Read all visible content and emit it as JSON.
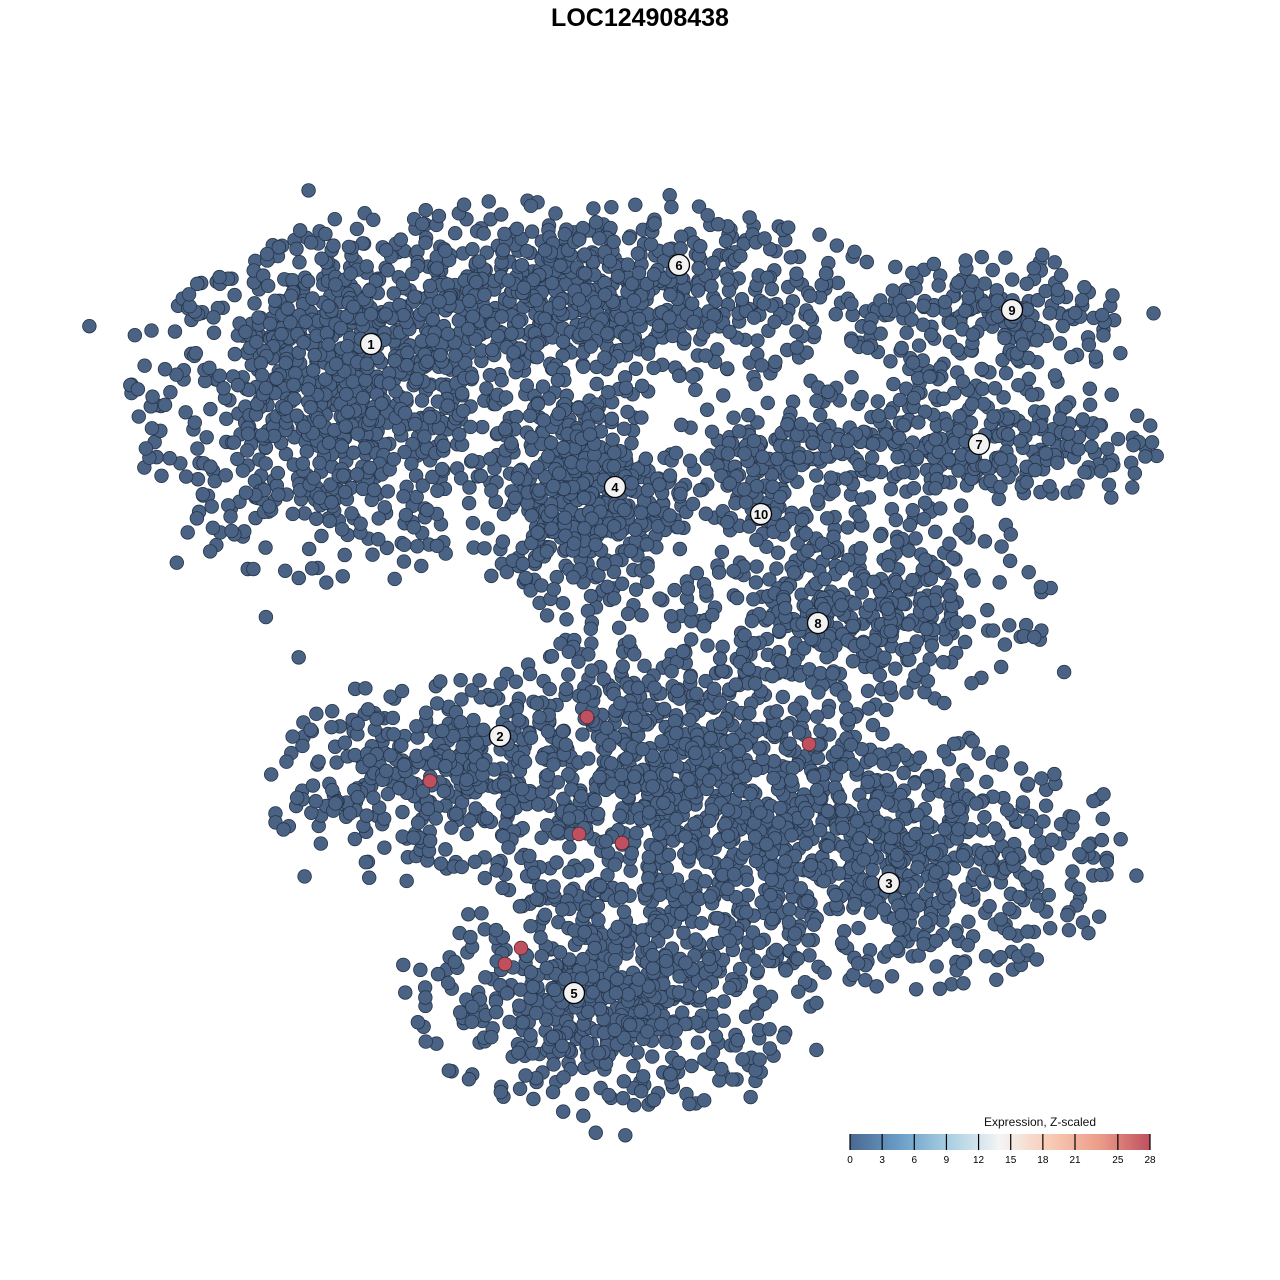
{
  "chart_data": {
    "type": "scatter",
    "title": "LOC124908438",
    "xlabel": "",
    "ylabel": "",
    "axes_visible": false,
    "grid": false,
    "xlim": [
      -45,
      50
    ],
    "ylim": [
      -47,
      47
    ],
    "point_color_default": "#4a6283",
    "point_edge_color": "#26354a",
    "clusters": [
      {
        "label": "1",
        "label_pos": [
          -26.9,
          29.6
        ],
        "components": [
          {
            "center": [
              -30,
              24
            ],
            "spread": [
              9,
              8
            ],
            "n": 900
          }
        ]
      },
      {
        "label": "6",
        "label_pos": [
          3.9,
          37.5
        ],
        "components": [
          {
            "center": [
              -6,
              34
            ],
            "spread": [
              13,
              4.5
            ],
            "n": 800
          }
        ]
      },
      {
        "label": "4",
        "label_pos": [
          -2.5,
          15.3
        ],
        "components": [
          {
            "center": [
              -5.5,
              14.5
            ],
            "spread": [
              4.5,
              5
            ],
            "n": 450
          }
        ]
      },
      {
        "label": "10",
        "label_pos": [
          12.1,
          12.6
        ],
        "components": [
          {
            "center": [
              11,
              16
            ],
            "spread": [
              4,
              4
            ],
            "n": 160
          }
        ]
      },
      {
        "label": "7",
        "label_pos": [
          33.9,
          19.6
        ],
        "components": [
          {
            "center": [
              32,
              20
            ],
            "spread": [
              9,
              3.5
            ],
            "n": 350
          }
        ]
      },
      {
        "label": "9",
        "label_pos": [
          37.2,
          33
        ],
        "components": [
          {
            "center": [
              36,
              32
            ],
            "spread": [
              6.5,
              3
            ],
            "n": 200
          }
        ]
      },
      {
        "label": "8",
        "label_pos": [
          17.8,
          1.7
        ],
        "components": [
          {
            "center": [
              22,
              3
            ],
            "spread": [
              8,
              4.5
            ],
            "n": 380
          }
        ]
      },
      {
        "label": "2",
        "label_pos": [
          -14,
          -9.6
        ],
        "components": [
          {
            "center": [
              -21,
              -14
            ],
            "spread": [
              7,
              4.5
            ],
            "n": 350
          }
        ]
      },
      {
        "label": "3",
        "label_pos": [
          24.9,
          -24.3
        ],
        "components": [
          {
            "center": [
              26,
              -22
            ],
            "spread": [
              10,
              5.5
            ],
            "n": 600
          }
        ]
      },
      {
        "label": "5",
        "label_pos": [
          -6.6,
          -35.3
        ],
        "components": [
          {
            "center": [
              -2,
              -36
            ],
            "spread": [
              9,
              5
            ],
            "n": 600
          },
          {
            "center": [
              4,
              -14
            ],
            "spread": [
              10,
              8
            ],
            "n": 950
          }
        ]
      }
    ],
    "highlighted_points": [
      {
        "x": -5.3,
        "y": -7.7,
        "value": 28
      },
      {
        "x": 16.9,
        "y": -10.4,
        "value": 28
      },
      {
        "x": -21.0,
        "y": -14.1,
        "value": 28
      },
      {
        "x": -6.1,
        "y": -19.4,
        "value": 28
      },
      {
        "x": -1.8,
        "y": -20.3,
        "value": 28
      },
      {
        "x": -11.9,
        "y": -30.8,
        "value": 28
      },
      {
        "x": -13.5,
        "y": -32.4,
        "value": 28
      }
    ],
    "highlight_color": "#c0505f",
    "colorbar": {
      "title": "Expression, Z-scaled",
      "range": [
        0,
        28
      ],
      "ticks": [
        0,
        3,
        6,
        9,
        12,
        15,
        18,
        21,
        25,
        28
      ],
      "tick_labels": [
        "0",
        "3",
        "6",
        "9",
        "12",
        "15",
        "18",
        "21",
        "25",
        "28"
      ],
      "colors": [
        "#4a6890",
        "#6b9ec8",
        "#a9d0e2",
        "#f4f4f4",
        "#f8cbb4",
        "#eb9c88",
        "#c0505f"
      ],
      "placement": "bottom-right"
    }
  }
}
